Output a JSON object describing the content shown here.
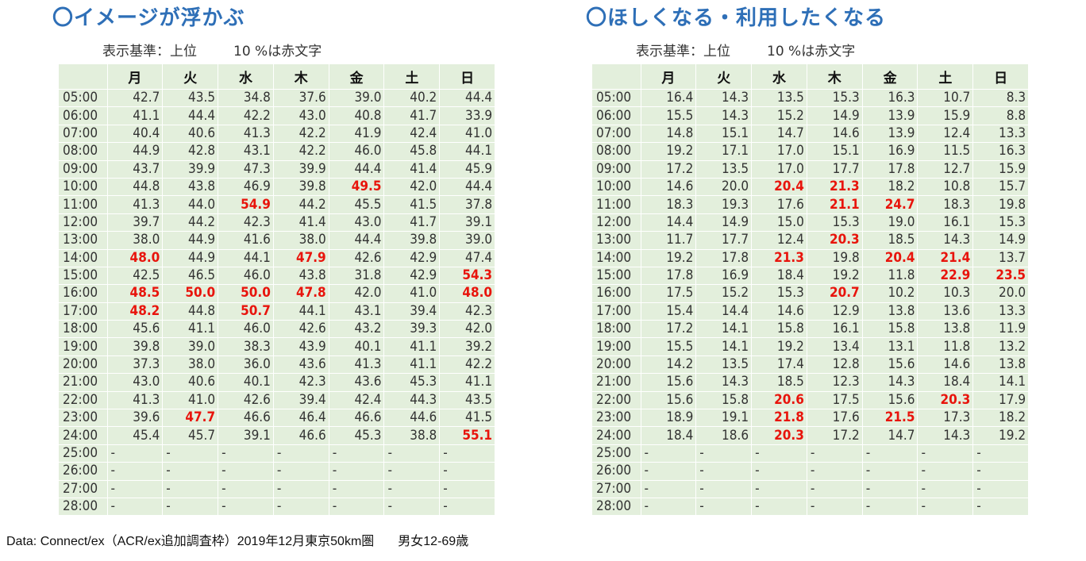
{
  "days": [
    "月",
    "火",
    "水",
    "木",
    "金",
    "土",
    "日"
  ],
  "threshold": {
    "prefix": "表示基準：上位",
    "value": "10",
    "suffix": "%は赤文字"
  },
  "panels": [
    {
      "title": "〇イメージが浮かぶ",
      "rows": [
        {
          "time": "05:00",
          "values": [
            "42.7",
            "43.5",
            "34.8",
            "37.6",
            "39.0",
            "40.2",
            "44.4"
          ],
          "hi": []
        },
        {
          "time": "06:00",
          "values": [
            "41.1",
            "44.4",
            "42.2",
            "43.0",
            "40.8",
            "41.7",
            "33.9"
          ],
          "hi": []
        },
        {
          "time": "07:00",
          "values": [
            "40.4",
            "40.6",
            "41.3",
            "42.2",
            "41.9",
            "42.4",
            "41.0"
          ],
          "hi": []
        },
        {
          "time": "08:00",
          "values": [
            "44.9",
            "42.8",
            "43.1",
            "42.2",
            "46.0",
            "45.8",
            "44.1"
          ],
          "hi": []
        },
        {
          "time": "09:00",
          "values": [
            "43.7",
            "39.9",
            "47.3",
            "39.9",
            "44.4",
            "41.4",
            "45.9"
          ],
          "hi": []
        },
        {
          "time": "10:00",
          "values": [
            "44.8",
            "43.8",
            "46.9",
            "39.8",
            "49.5",
            "42.0",
            "44.4"
          ],
          "hi": [
            4
          ]
        },
        {
          "time": "11:00",
          "values": [
            "41.3",
            "44.0",
            "54.9",
            "44.2",
            "45.5",
            "41.5",
            "37.8"
          ],
          "hi": [
            2
          ]
        },
        {
          "time": "12:00",
          "values": [
            "39.7",
            "44.2",
            "42.3",
            "41.4",
            "43.0",
            "41.7",
            "39.1"
          ],
          "hi": []
        },
        {
          "time": "13:00",
          "values": [
            "38.0",
            "44.9",
            "41.6",
            "38.0",
            "44.4",
            "39.8",
            "39.0"
          ],
          "hi": []
        },
        {
          "time": "14:00",
          "values": [
            "48.0",
            "44.9",
            "44.1",
            "47.9",
            "42.6",
            "42.9",
            "47.4"
          ],
          "hi": [
            0,
            3
          ]
        },
        {
          "time": "15:00",
          "values": [
            "42.5",
            "46.5",
            "46.0",
            "43.8",
            "31.8",
            "42.9",
            "54.3"
          ],
          "hi": [
            6
          ]
        },
        {
          "time": "16:00",
          "values": [
            "48.5",
            "50.0",
            "50.0",
            "47.8",
            "42.0",
            "41.0",
            "48.0"
          ],
          "hi": [
            0,
            1,
            2,
            3,
            6
          ]
        },
        {
          "time": "17:00",
          "values": [
            "48.2",
            "44.8",
            "50.7",
            "44.1",
            "43.1",
            "39.4",
            "42.3"
          ],
          "hi": [
            0,
            2
          ]
        },
        {
          "time": "18:00",
          "values": [
            "45.6",
            "41.1",
            "46.0",
            "42.6",
            "43.2",
            "39.3",
            "42.0"
          ],
          "hi": []
        },
        {
          "time": "19:00",
          "values": [
            "39.8",
            "39.0",
            "38.3",
            "43.9",
            "40.1",
            "41.1",
            "39.2"
          ],
          "hi": []
        },
        {
          "time": "20:00",
          "values": [
            "37.3",
            "38.0",
            "36.0",
            "43.6",
            "41.3",
            "41.1",
            "42.2"
          ],
          "hi": []
        },
        {
          "time": "21:00",
          "values": [
            "43.0",
            "40.6",
            "40.1",
            "42.3",
            "43.6",
            "45.3",
            "41.1"
          ],
          "hi": []
        },
        {
          "time": "22:00",
          "values": [
            "41.3",
            "41.0",
            "42.6",
            "39.4",
            "42.4",
            "44.3",
            "43.5"
          ],
          "hi": []
        },
        {
          "time": "23:00",
          "values": [
            "39.6",
            "47.7",
            "46.6",
            "46.4",
            "46.6",
            "44.6",
            "41.5"
          ],
          "hi": [
            1
          ]
        },
        {
          "time": "24:00",
          "values": [
            "45.4",
            "45.7",
            "39.1",
            "46.6",
            "45.3",
            "38.8",
            "55.1"
          ],
          "hi": [
            6
          ]
        },
        {
          "time": "25:00",
          "values": [
            "-",
            "-",
            "-",
            "-",
            "-",
            "-",
            "-"
          ],
          "hi": []
        },
        {
          "time": "26:00",
          "values": [
            "-",
            "-",
            "-",
            "-",
            "-",
            "-",
            "-"
          ],
          "hi": []
        },
        {
          "time": "27:00",
          "values": [
            "-",
            "-",
            "-",
            "-",
            "-",
            "-",
            "-"
          ],
          "hi": []
        },
        {
          "time": "28:00",
          "values": [
            "-",
            "-",
            "-",
            "-",
            "-",
            "-",
            "-"
          ],
          "hi": []
        }
      ]
    },
    {
      "title": "〇ほしくなる・利用したくなる",
      "rows": [
        {
          "time": "05:00",
          "values": [
            "16.4",
            "14.3",
            "13.5",
            "15.3",
            "16.3",
            "10.7",
            "8.3"
          ],
          "hi": []
        },
        {
          "time": "06:00",
          "values": [
            "15.5",
            "14.3",
            "15.2",
            "14.9",
            "13.9",
            "15.9",
            "8.8"
          ],
          "hi": []
        },
        {
          "time": "07:00",
          "values": [
            "14.8",
            "15.1",
            "14.7",
            "14.6",
            "13.9",
            "12.4",
            "13.3"
          ],
          "hi": []
        },
        {
          "time": "08:00",
          "values": [
            "19.2",
            "17.1",
            "17.0",
            "15.1",
            "16.9",
            "11.5",
            "16.3"
          ],
          "hi": []
        },
        {
          "time": "09:00",
          "values": [
            "17.2",
            "13.5",
            "17.0",
            "17.7",
            "17.8",
            "12.7",
            "15.9"
          ],
          "hi": []
        },
        {
          "time": "10:00",
          "values": [
            "14.6",
            "20.0",
            "20.4",
            "21.3",
            "18.2",
            "10.8",
            "15.7"
          ],
          "hi": [
            2,
            3
          ]
        },
        {
          "time": "11:00",
          "values": [
            "18.3",
            "19.3",
            "17.6",
            "21.1",
            "24.7",
            "18.3",
            "19.8"
          ],
          "hi": [
            3,
            4
          ]
        },
        {
          "time": "12:00",
          "values": [
            "14.4",
            "14.9",
            "15.0",
            "15.3",
            "19.0",
            "16.1",
            "15.3"
          ],
          "hi": []
        },
        {
          "time": "13:00",
          "values": [
            "11.7",
            "17.7",
            "12.4",
            "20.3",
            "18.5",
            "14.3",
            "14.9"
          ],
          "hi": [
            3
          ]
        },
        {
          "time": "14:00",
          "values": [
            "19.2",
            "17.8",
            "21.3",
            "19.8",
            "20.4",
            "21.4",
            "13.7"
          ],
          "hi": [
            2,
            4,
            5
          ]
        },
        {
          "time": "15:00",
          "values": [
            "17.8",
            "16.9",
            "18.4",
            "19.2",
            "11.8",
            "22.9",
            "23.5"
          ],
          "hi": [
            5,
            6
          ]
        },
        {
          "time": "16:00",
          "values": [
            "17.5",
            "15.2",
            "15.3",
            "20.7",
            "10.2",
            "10.3",
            "20.0"
          ],
          "hi": [
            3
          ]
        },
        {
          "time": "17:00",
          "values": [
            "15.4",
            "14.4",
            "14.6",
            "12.9",
            "13.8",
            "13.6",
            "13.3"
          ],
          "hi": []
        },
        {
          "time": "18:00",
          "values": [
            "17.2",
            "14.1",
            "15.8",
            "16.1",
            "15.8",
            "13.8",
            "11.9"
          ],
          "hi": []
        },
        {
          "time": "19:00",
          "values": [
            "15.5",
            "14.1",
            "19.2",
            "13.4",
            "13.1",
            "11.8",
            "13.2"
          ],
          "hi": []
        },
        {
          "time": "20:00",
          "values": [
            "14.2",
            "13.5",
            "17.4",
            "12.8",
            "15.6",
            "14.6",
            "13.8"
          ],
          "hi": []
        },
        {
          "time": "21:00",
          "values": [
            "15.6",
            "14.3",
            "18.5",
            "12.3",
            "14.3",
            "18.4",
            "14.1"
          ],
          "hi": []
        },
        {
          "time": "22:00",
          "values": [
            "15.6",
            "15.8",
            "20.6",
            "17.5",
            "15.6",
            "20.3",
            "17.9"
          ],
          "hi": [
            2,
            5
          ]
        },
        {
          "time": "23:00",
          "values": [
            "18.9",
            "19.1",
            "21.8",
            "17.6",
            "21.5",
            "17.3",
            "18.2"
          ],
          "hi": [
            2,
            4
          ]
        },
        {
          "time": "24:00",
          "values": [
            "18.4",
            "18.6",
            "20.3",
            "17.2",
            "14.7",
            "14.3",
            "19.2"
          ],
          "hi": [
            2
          ]
        },
        {
          "time": "25:00",
          "values": [
            "-",
            "-",
            "-",
            "-",
            "-",
            "-",
            "-"
          ],
          "hi": []
        },
        {
          "time": "26:00",
          "values": [
            "-",
            "-",
            "-",
            "-",
            "-",
            "-",
            "-"
          ],
          "hi": []
        },
        {
          "time": "27:00",
          "values": [
            "-",
            "-",
            "-",
            "-",
            "-",
            "-",
            "-"
          ],
          "hi": []
        },
        {
          "time": "28:00",
          "values": [
            "-",
            "-",
            "-",
            "-",
            "-",
            "-",
            "-"
          ],
          "hi": []
        }
      ]
    }
  ],
  "source": {
    "main": "Data: Connect/ex（ACR/ex追加調査枠）2019年12月東京50km圏",
    "target": "男女12-69歳"
  },
  "colors": {
    "title": "#2e6fb7",
    "cell_bg": "#e3efdc",
    "highlight": "#e8140c"
  }
}
